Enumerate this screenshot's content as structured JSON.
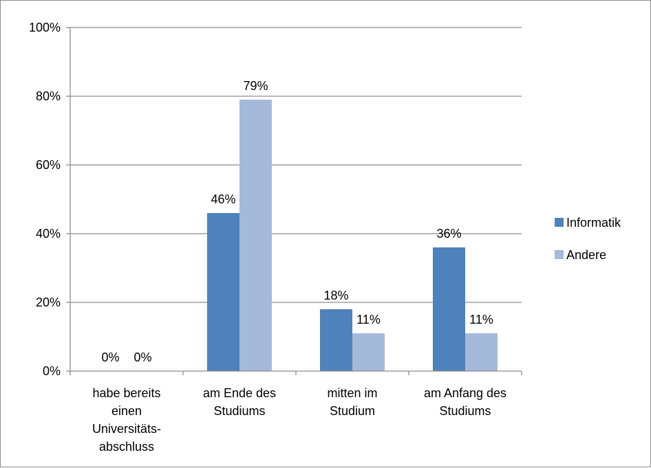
{
  "chart_data": {
    "type": "bar",
    "title": "",
    "xlabel": "",
    "ylabel": "",
    "ylim": [
      0,
      100
    ],
    "yticks": [
      "0%",
      "20%",
      "40%",
      "60%",
      "80%",
      "100%"
    ],
    "categories": [
      [
        "habe bereits",
        "einen",
        "Universitäts-",
        "abschluss"
      ],
      [
        "am Ende des",
        "Studiums"
      ],
      [
        "mitten im",
        "Studium"
      ],
      [
        "am Anfang des",
        "Studiums"
      ]
    ],
    "series": [
      {
        "name": "Informatik",
        "values": [
          0,
          46,
          18,
          36
        ],
        "labels": [
          "0%",
          "46%",
          "18%",
          "36%"
        ],
        "color": "#4f81bd"
      },
      {
        "name": "Andere",
        "values": [
          0,
          79,
          11,
          11
        ],
        "labels": [
          "0%",
          "79%",
          "11%",
          "11%"
        ],
        "color": "#a5b9da"
      }
    ],
    "grid": true,
    "legend_position": "right"
  }
}
